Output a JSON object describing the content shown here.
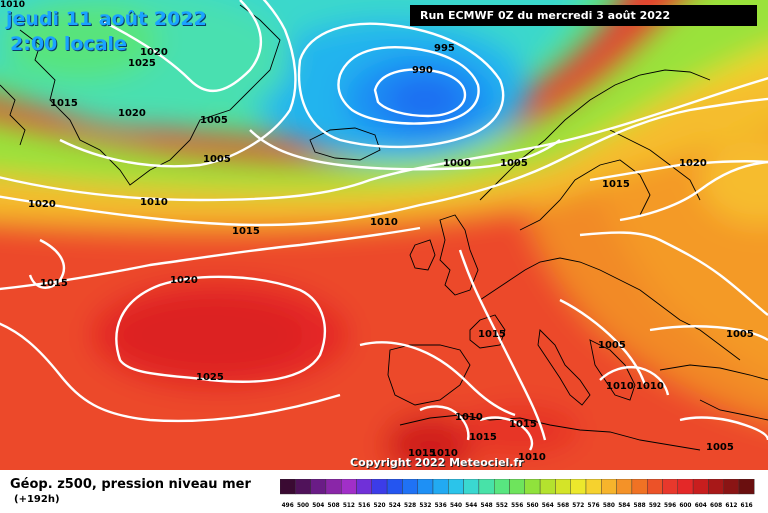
{
  "header": {
    "date_line": "jeudi 11 août 2022",
    "time_line": "2:00 locale",
    "corner_value": "1010",
    "run_info": "Run ECMWF 0Z du mercredi 3 août 2022"
  },
  "footer": {
    "title": "Géop. z500, pression niveau mer",
    "subtitle": "(+192h)",
    "copyright": "Copyright 2022 Meteociel.fr"
  },
  "legend": {
    "values": [
      "496",
      "500",
      "504",
      "508",
      "512",
      "516",
      "520",
      "524",
      "528",
      "532",
      "536",
      "540",
      "544",
      "548",
      "552",
      "556",
      "560",
      "564",
      "568",
      "572",
      "576",
      "580",
      "584",
      "588",
      "592",
      "596",
      "600",
      "604",
      "608",
      "612",
      "616"
    ],
    "colors": [
      "#3a0a32",
      "#50125a",
      "#6a1c86",
      "#8a26a8",
      "#a12fc8",
      "#7030d8",
      "#3c3ce8",
      "#2455f0",
      "#1f72f5",
      "#1e90f5",
      "#22aaf2",
      "#2bc4ea",
      "#3ad8d0",
      "#48e2a8",
      "#58e680",
      "#6ee45c",
      "#90e23c",
      "#b4e22e",
      "#d4e428",
      "#ece82c",
      "#f6d22e",
      "#f6b42c",
      "#f49228",
      "#f07224",
      "#ec5228",
      "#e8382c",
      "#e42828",
      "#c81e1e",
      "#a81818",
      "#8a1414",
      "#6a0f0f"
    ]
  },
  "isobars": [
    {
      "label": "1020",
      "kind": "isobar"
    },
    {
      "label": "1025",
      "kind": "isobar"
    },
    {
      "label": "1015",
      "kind": "isobar"
    },
    {
      "label": "1020",
      "kind": "isobar"
    },
    {
      "label": "1005",
      "kind": "isobar"
    },
    {
      "label": "1005",
      "kind": "isobar"
    },
    {
      "label": "995",
      "kind": "isobar"
    },
    {
      "label": "990",
      "kind": "isobar"
    },
    {
      "label": "1000",
      "kind": "isobar"
    },
    {
      "label": "1005",
      "kind": "isobar"
    },
    {
      "label": "1020",
      "kind": "isobar"
    },
    {
      "label": "1015",
      "kind": "isobar"
    },
    {
      "label": "1010",
      "kind": "isobar"
    },
    {
      "label": "1020",
      "kind": "isobar"
    },
    {
      "label": "1015",
      "kind": "isobar"
    },
    {
      "label": "1010",
      "kind": "isobar"
    },
    {
      "label": "1015",
      "kind": "isobar"
    },
    {
      "label": "1020",
      "kind": "isobar"
    },
    {
      "label": "1025",
      "kind": "isobar"
    },
    {
      "label": "1015",
      "kind": "isobar"
    },
    {
      "label": "1005",
      "kind": "isobar"
    },
    {
      "label": "1005",
      "kind": "isobar"
    },
    {
      "label": "1010",
      "kind": "isobar"
    },
    {
      "label": "1010",
      "kind": "isobar"
    },
    {
      "label": "1010",
      "kind": "isobar"
    },
    {
      "label": "1015",
      "kind": "isobar"
    },
    {
      "label": "1015",
      "kind": "isobar"
    },
    {
      "label": "1015",
      "kind": "isobar"
    },
    {
      "label": "1010",
      "kind": "isobar"
    },
    {
      "label": "1010",
      "kind": "isobar"
    },
    {
      "label": "1005",
      "kind": "isobar"
    }
  ]
}
